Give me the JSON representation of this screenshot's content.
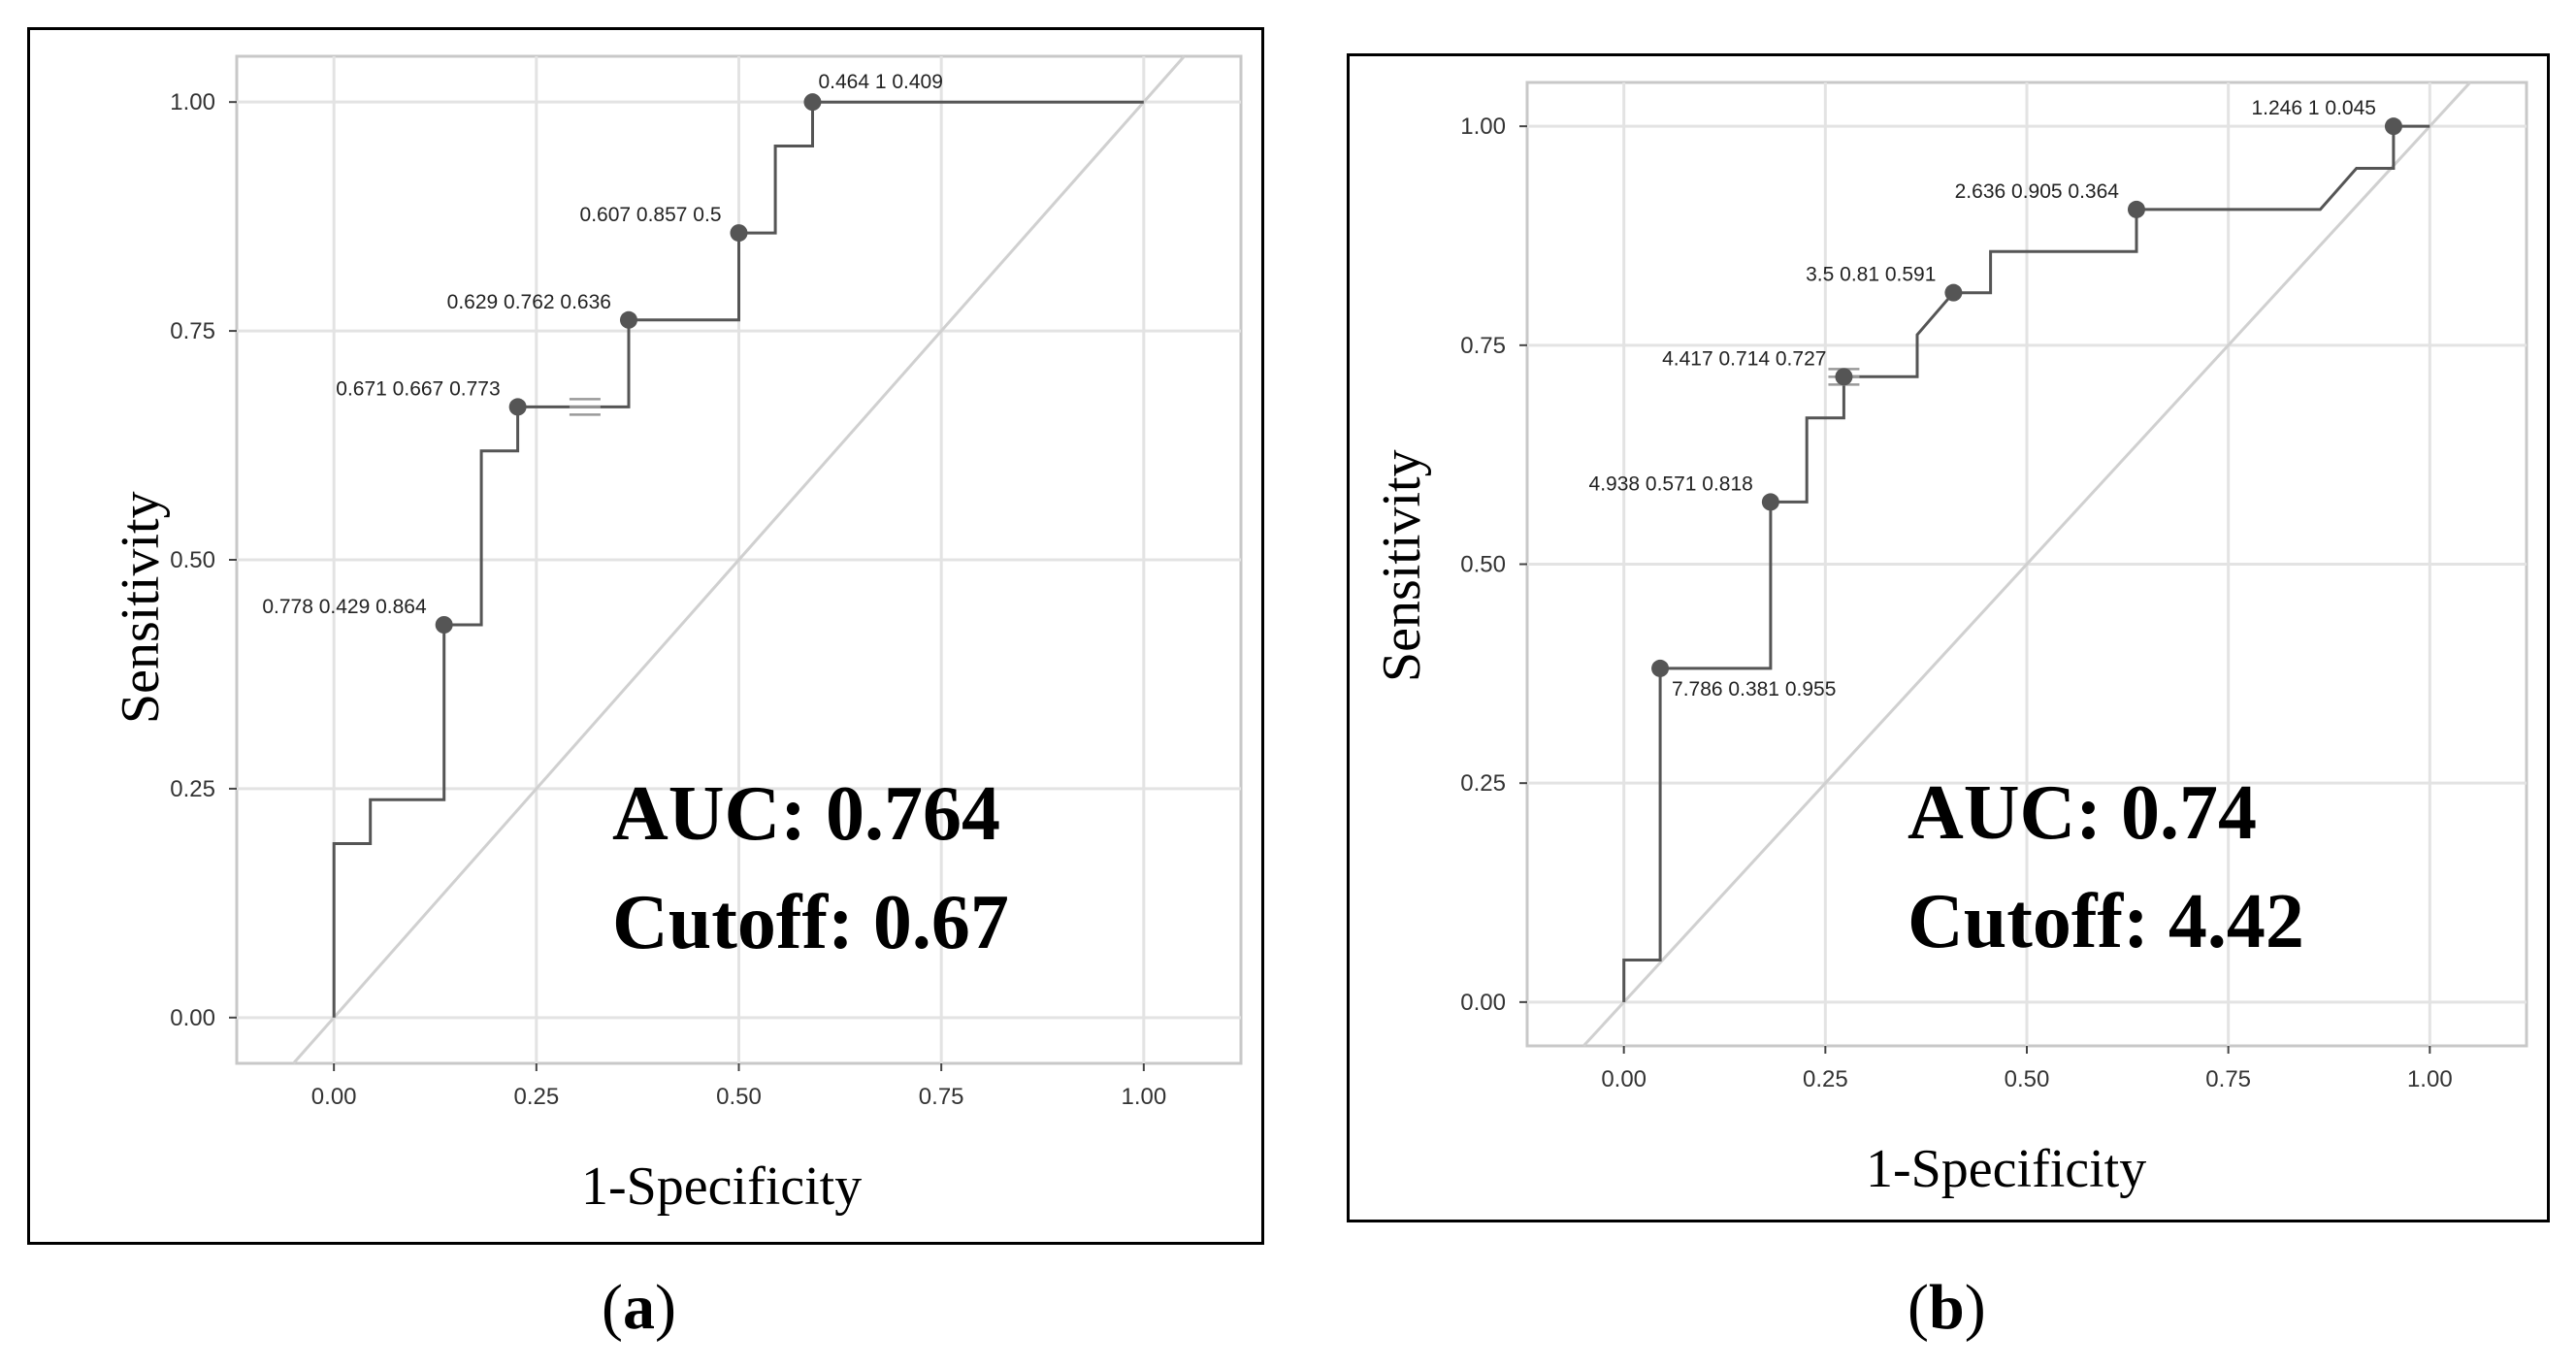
{
  "chart_data": [
    {
      "id": "a",
      "type": "line",
      "title": "",
      "xlabel": "1-Specificity",
      "ylabel": "Sensitivity",
      "xlim": [
        -0.12,
        1.12
      ],
      "ylim": [
        -0.05,
        1.05
      ],
      "xticks": [
        "0.00",
        "0.25",
        "0.50",
        "0.75",
        "1.00"
      ],
      "yticks": [
        "0.00",
        "0.25",
        "0.50",
        "0.75",
        "1.00"
      ],
      "grid": true,
      "auc_text": "AUC: 0.764",
      "cutoff_text": "Cutoff: 0.67",
      "caption_letter": "a",
      "roc_curve": {
        "x": [
          0,
          0,
          0.045,
          0.045,
          0.136,
          0.136,
          0.182,
          0.182,
          0.227,
          0.227,
          0.364,
          0.364,
          0.5,
          0.5,
          0.545,
          0.545,
          0.591,
          0.591,
          1.0
        ],
        "y": [
          0,
          0.19,
          0.19,
          0.238,
          0.238,
          0.429,
          0.429,
          0.619,
          0.619,
          0.667,
          0.667,
          0.762,
          0.762,
          0.857,
          0.857,
          0.952,
          0.952,
          1.0,
          1.0
        ]
      },
      "points": [
        {
          "x": 0.136,
          "y": 0.429,
          "label": "0.778 0.429 0.864",
          "anchor": "left"
        },
        {
          "x": 0.227,
          "y": 0.667,
          "label": "0.671 0.667 0.773",
          "anchor": "left"
        },
        {
          "x": 0.364,
          "y": 0.762,
          "label": "0.629 0.762 0.636",
          "anchor": "left"
        },
        {
          "x": 0.5,
          "y": 0.857,
          "label": "0.607 0.857 0.5",
          "anchor": "left"
        },
        {
          "x": 0.591,
          "y": 1.0,
          "label": "0.464 1 0.409",
          "anchor": "above"
        }
      ],
      "marker": {
        "x": 0.31,
        "y": 0.667
      }
    },
    {
      "id": "b",
      "type": "line",
      "title": "",
      "xlabel": "1-Specificity",
      "ylabel": "Sensitivity",
      "xlim": [
        -0.12,
        1.12
      ],
      "ylim": [
        -0.05,
        1.05
      ],
      "xticks": [
        "0.00",
        "0.25",
        "0.50",
        "0.75",
        "1.00"
      ],
      "yticks": [
        "0.00",
        "0.25",
        "0.50",
        "0.75",
        "1.00"
      ],
      "grid": true,
      "auc_text": "AUC: 0.74",
      "cutoff_text": "Cutoff: 4.42",
      "caption_letter": "b",
      "roc_curve": {
        "x": [
          0,
          0,
          0.045,
          0.045,
          0.182,
          0.182,
          0.227,
          0.227,
          0.273,
          0.273,
          0.364,
          0.364,
          0.409,
          0.409,
          0.455,
          0.455,
          0.636,
          0.636,
          0.864,
          0.909,
          0.955,
          0.955,
          1.0
        ],
        "y": [
          0,
          0.048,
          0.048,
          0.381,
          0.381,
          0.571,
          0.571,
          0.667,
          0.667,
          0.714,
          0.714,
          0.762,
          0.81,
          0.81,
          0.81,
          0.857,
          0.857,
          0.905,
          0.905,
          0.952,
          0.952,
          1.0,
          1.0
        ]
      },
      "points": [
        {
          "x": 0.045,
          "y": 0.381,
          "label": "7.786 0.381 0.955",
          "anchor": "below-right"
        },
        {
          "x": 0.182,
          "y": 0.571,
          "label": "4.938 0.571 0.818",
          "anchor": "left"
        },
        {
          "x": 0.273,
          "y": 0.714,
          "label": "4.417 0.714 0.727",
          "anchor": "left"
        },
        {
          "x": 0.409,
          "y": 0.81,
          "label": "3.5 0.81 0.591",
          "anchor": "left"
        },
        {
          "x": 0.636,
          "y": 0.905,
          "label": "2.636 0.905 0.364",
          "anchor": "left"
        },
        {
          "x": 0.955,
          "y": 1.0,
          "label": "1.246 1 0.045",
          "anchor": "left"
        }
      ],
      "marker": {
        "x": 0.273,
        "y": 0.714
      }
    }
  ]
}
